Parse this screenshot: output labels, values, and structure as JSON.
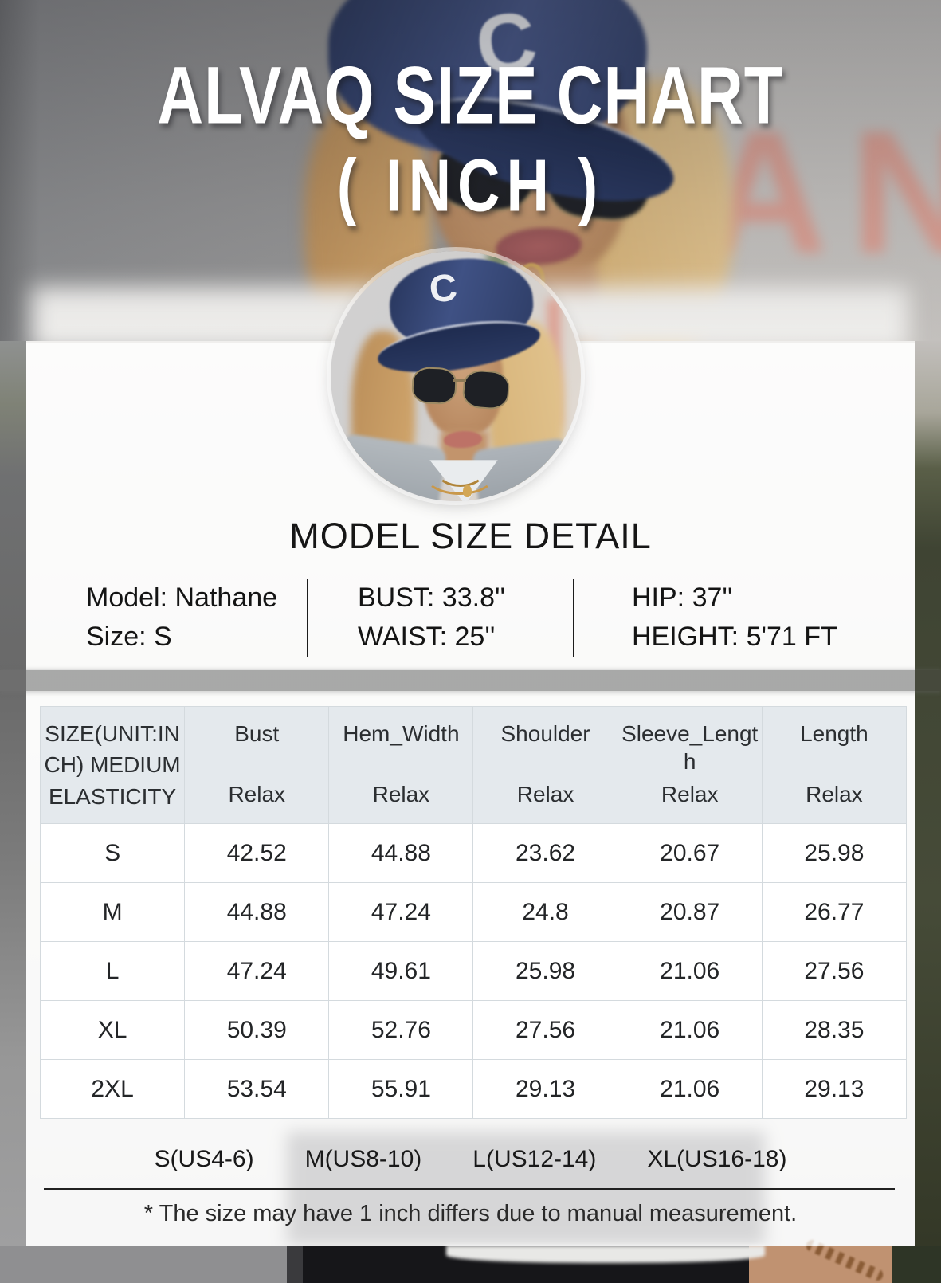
{
  "title": "ALVAQ SIZE CHART",
  "subtitle": "( INCH )",
  "photo": {
    "cap_letter": "C",
    "sign_text": "AN"
  },
  "model_detail": {
    "heading": "MODEL SIZE DETAIL",
    "columns": [
      {
        "line1": "Model: Nathane",
        "line2": "Size: S"
      },
      {
        "line1": "BUST: 33.8''",
        "line2": "WAIST: 25''"
      },
      {
        "line1": "HIP: 37''",
        "line2": "HEIGHT: 5'71 FT"
      }
    ]
  },
  "chart_data": {
    "type": "table",
    "title": "ALVAQ SIZE CHART ( INCH )",
    "unit": "inch",
    "size_column_label": "SIZE(UNIT:INCH) MEDIUM ELASTICITY",
    "columns": [
      "Bust",
      "Hem_Width",
      "Shoulder",
      "Sleeve_Length",
      "Length"
    ],
    "fit_labels": [
      "Relax",
      "Relax",
      "Relax",
      "Relax",
      "Relax"
    ],
    "rows": [
      {
        "size": "S",
        "values": [
          "42.52",
          "44.88",
          "23.62",
          "20.67",
          "25.98"
        ]
      },
      {
        "size": "M",
        "values": [
          "44.88",
          "47.24",
          "24.8",
          "20.87",
          "26.77"
        ]
      },
      {
        "size": "L",
        "values": [
          "47.24",
          "49.61",
          "25.98",
          "21.06",
          "27.56"
        ]
      },
      {
        "size": "XL",
        "values": [
          "50.39",
          "52.76",
          "27.56",
          "21.06",
          "28.35"
        ]
      },
      {
        "size": "2XL",
        "values": [
          "53.54",
          "55.91",
          "29.13",
          "21.06",
          "29.13"
        ]
      }
    ]
  },
  "us_sizes": [
    "S(US4-6)",
    "M(US8-10)",
    "L(US12-14)",
    "XL(US16-18)"
  ],
  "footnote": "* The size may have 1 inch differs due to manual measurement.",
  "colors": {
    "header_cell_bg": "#e4e9ed",
    "table_grid": "#d4dade",
    "cap_navy": "#33426d",
    "sign_salmon": "#e09a8c",
    "panel_overlay": "rgba(255,255,255,0.78)",
    "title_text": "#ffffff"
  }
}
